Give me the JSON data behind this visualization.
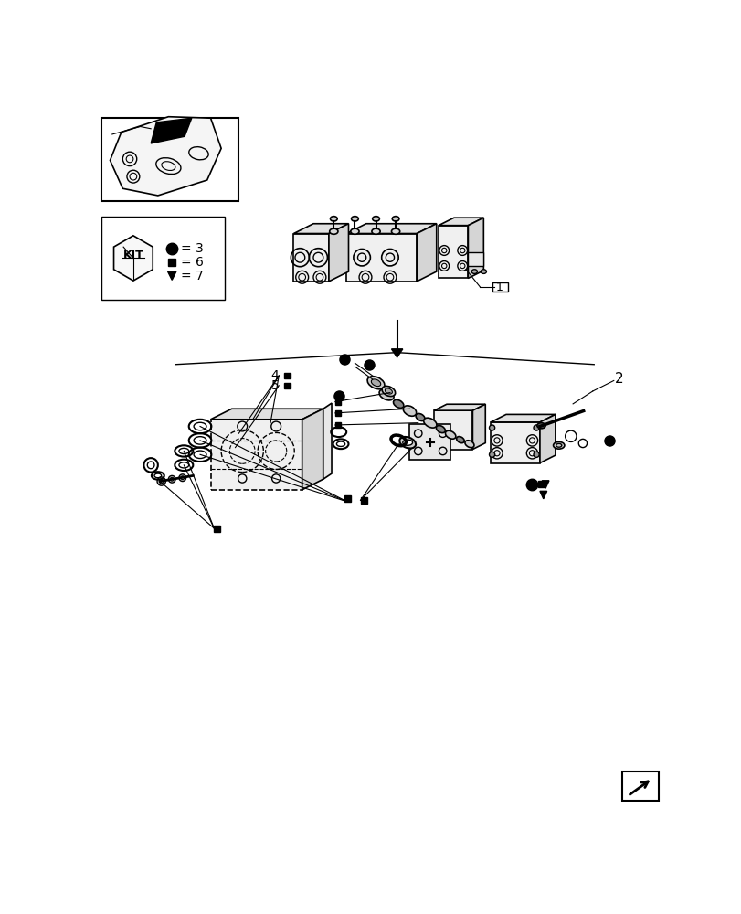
{
  "bg_color": "#ffffff",
  "line_color": "#000000",
  "figsize": [
    8.12,
    10.0
  ],
  "dpi": 100,
  "kit_label": "KIT",
  "legend": [
    {
      "shape": "circle",
      "value": "3"
    },
    {
      "shape": "square",
      "value": "6"
    },
    {
      "shape": "triangle",
      "value": "7"
    }
  ]
}
